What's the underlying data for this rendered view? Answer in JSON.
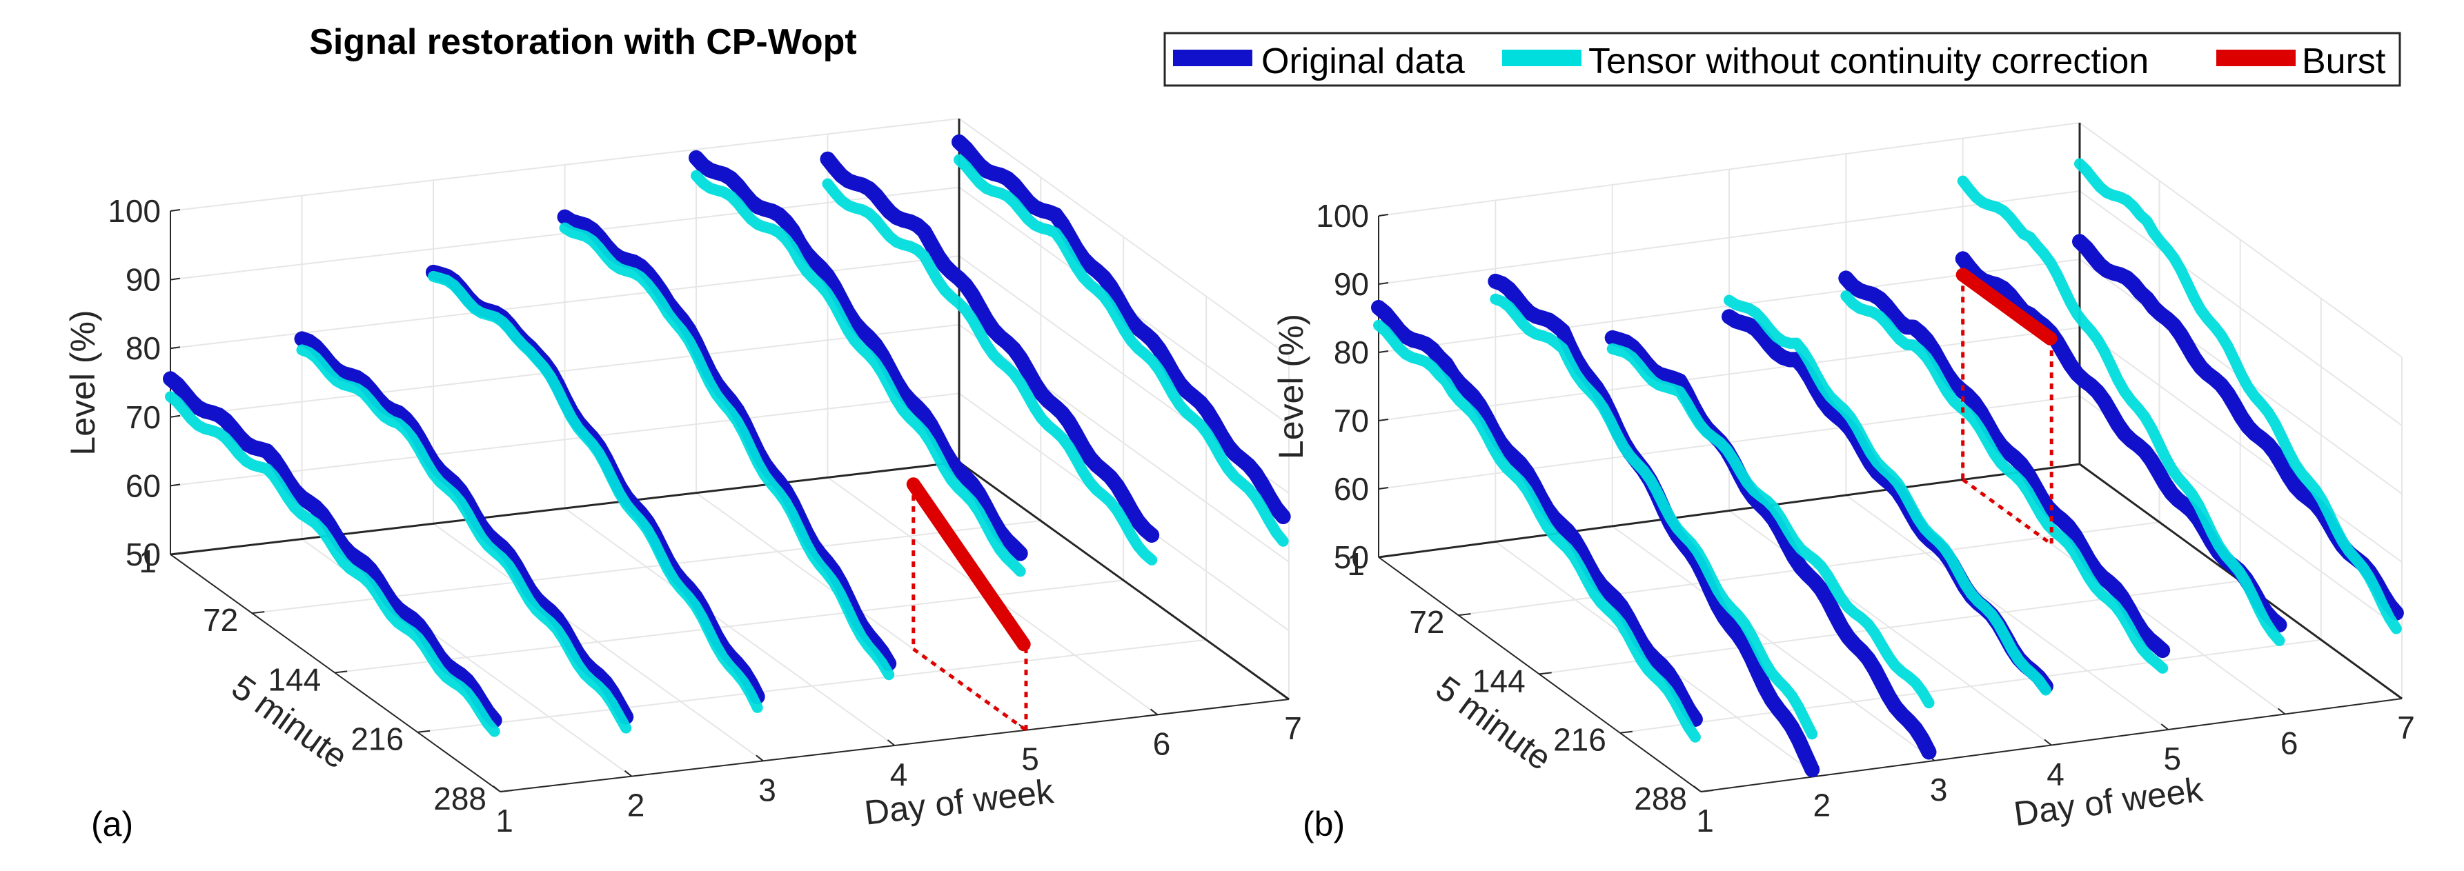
{
  "figure": {
    "title": "Signal restoration with CP-Wopt",
    "panel_labels": [
      "(a)",
      "(b)"
    ]
  },
  "legend": {
    "placement": "top-right",
    "entries": [
      {
        "label": "Original data",
        "color": "#1111cc"
      },
      {
        "label": "Tensor without continuity correction",
        "color": "#00dddd"
      },
      {
        "label": "Burst",
        "color": "#dd0000"
      }
    ]
  },
  "colors": {
    "original": "#1111cc",
    "tensor": "#00dddd",
    "burst": "#dd0000",
    "axis": "#262626",
    "grid": "#e6e6e6"
  },
  "chart_data": [
    {
      "type": "line3d",
      "panel": "(a)",
      "title": "Signal restoration with CP-Wopt",
      "xlabel": "Day of week",
      "ylabel": "5 minute",
      "zlabel": "Level (%)",
      "x_ticks": [
        "1",
        "2",
        "3",
        "4",
        "5",
        "6",
        "7"
      ],
      "y_ticks": [
        "1",
        "72",
        "144",
        "216",
        "288"
      ],
      "z_ticks": [
        "50",
        "60",
        "70",
        "80",
        "90",
        "100"
      ],
      "xlim": [
        1,
        7
      ],
      "ylim": [
        1,
        288
      ],
      "zlim": [
        50,
        100
      ],
      "series": [
        {
          "name": "Original data",
          "day": 1,
          "start": 75,
          "end": 60,
          "drop_at": 80,
          "flat_end": 288
        },
        {
          "name": "Original data",
          "day": 2,
          "start": 79,
          "end": 58,
          "drop_at": 80,
          "flat_end": 288
        },
        {
          "name": "Original data",
          "day": 3,
          "start": 87,
          "end": 58,
          "drop_at": 80,
          "flat_end": 288
        },
        {
          "name": "Original data",
          "day": 4,
          "start": 93,
          "end": 60,
          "drop_at": 80,
          "flat_end": 288
        },
        {
          "name": "Original data",
          "day": 5,
          "start": 99,
          "end": 74,
          "drop_at": 80,
          "flat_end": 288
        },
        {
          "name": "Original data",
          "day": 6,
          "start": 96,
          "end": 75,
          "drop_at": 80,
          "flat_end": 288
        },
        {
          "name": "Original data",
          "day": 7,
          "start": 96,
          "end": 76,
          "drop_at": 80,
          "flat_end": 288
        },
        {
          "name": "Tensor without continuity correction",
          "day": 1,
          "start": 73,
          "end": 59,
          "drop_at": 80,
          "flat_end": 288
        },
        {
          "name": "Tensor without continuity correction",
          "day": 2,
          "start": 78,
          "end": 57,
          "drop_at": 80,
          "flat_end": 288
        },
        {
          "name": "Tensor without continuity correction",
          "day": 3,
          "start": 87,
          "end": 57,
          "drop_at": 80,
          "flat_end": 288
        },
        {
          "name": "Tensor without continuity correction",
          "day": 4,
          "start": 92,
          "end": 59,
          "drop_at": 80,
          "flat_end": 288
        },
        {
          "name": "Tensor without continuity correction",
          "day": 5,
          "start": 97,
          "end": 72,
          "drop_at": 80,
          "flat_end": 288
        },
        {
          "name": "Tensor without continuity correction",
          "day": 6,
          "start": 93,
          "end": 72,
          "drop_at": 80,
          "flat_end": 288
        },
        {
          "name": "Tensor without continuity correction",
          "day": 7,
          "start": 94,
          "end": 73,
          "drop_at": 80,
          "flat_end": 288
        },
        {
          "name": "Burst",
          "day": 5,
          "y_range": [
            190,
            288
          ],
          "level_start": 74,
          "level_end": 62
        }
      ]
    },
    {
      "type": "line3d",
      "panel": "(b)",
      "xlabel": "Day of week",
      "ylabel": "5 minute",
      "zlabel": "Level (%)",
      "x_ticks": [
        "1",
        "2",
        "3",
        "4",
        "5",
        "6",
        "7"
      ],
      "y_ticks": [
        "1",
        "72",
        "144",
        "216",
        "288"
      ],
      "z_ticks": [
        "50",
        "60",
        "70",
        "80",
        "90",
        "100"
      ],
      "xlim": [
        1,
        7
      ],
      "ylim": [
        1,
        288
      ],
      "zlim": [
        50,
        100
      ],
      "series": [
        {
          "name": "Original data",
          "day": 1,
          "start": 86,
          "end": 60,
          "drop_at": 60,
          "flat_end": 288
        },
        {
          "name": "Original data",
          "day": 2,
          "start": 88,
          "end": 50,
          "drop_at": 60,
          "flat_end": 288
        },
        {
          "name": "Original data",
          "day": 3,
          "start": 78,
          "end": 50,
          "drop_at": 60,
          "flat_end": 288
        },
        {
          "name": "Original data",
          "day": 4,
          "start": 79,
          "end": 57,
          "drop_at": 60,
          "flat_end": 288
        },
        {
          "name": "Original data",
          "day": 5,
          "start": 82,
          "end": 60,
          "drop_at": 60,
          "flat_end": 288
        },
        {
          "name": "Original data",
          "day": 6,
          "start": 82,
          "end": 62,
          "drop_at": 60,
          "flat_end": 288
        },
        {
          "name": "Original data",
          "day": 7,
          "start": 82,
          "end": 62,
          "drop_at": 60,
          "flat_end": 288
        },
        {
          "name": "Tensor without continuity correction",
          "day": 1,
          "start": 84,
          "end": 58,
          "drop_at": 60,
          "flat_end": 288
        },
        {
          "name": "Tensor without continuity correction",
          "day": 2,
          "start": 86,
          "end": 56,
          "drop_at": 60,
          "flat_end": 288
        },
        {
          "name": "Tensor without continuity correction",
          "day": 3,
          "start": 77,
          "end": 58,
          "drop_at": 60,
          "flat_end": 288
        },
        {
          "name": "Tensor without continuity correction",
          "day": 4,
          "start": 82,
          "end": 57,
          "drop_at": 60,
          "flat_end": 288
        },
        {
          "name": "Tensor without continuity correction",
          "day": 5,
          "start": 80,
          "end": 58,
          "drop_at": 60,
          "flat_end": 288
        },
        {
          "name": "Tensor without continuity correction",
          "day": 6,
          "start": 94,
          "end": 60,
          "drop_at": 60,
          "flat_end": 288
        },
        {
          "name": "Tensor without continuity correction",
          "day": 7,
          "start": 94,
          "end": 60,
          "drop_at": 60,
          "flat_end": 288
        },
        {
          "name": "Burst",
          "day": 6,
          "y_range": [
            1,
            80
          ],
          "level_start": 80,
          "level_end": 80
        }
      ]
    }
  ]
}
